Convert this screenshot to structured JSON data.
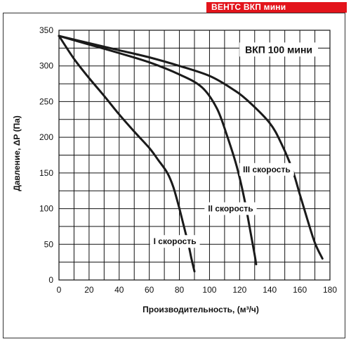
{
  "brand": {
    "text": "ВЕНТС ВКП мини",
    "color": "#e3141b"
  },
  "chart_data": {
    "type": "line",
    "title": "ВКП 100 мини",
    "xlabel": "Производительность, (м³/ч)",
    "ylabel": "Давление, ΔP (Па)",
    "xlim": [
      0,
      180
    ],
    "ylim": [
      0,
      350
    ],
    "x_ticks": [
      0,
      20,
      40,
      60,
      80,
      100,
      120,
      140,
      160,
      180
    ],
    "y_ticks": [
      0,
      50,
      100,
      150,
      200,
      250,
      300,
      350
    ],
    "grid": true,
    "series": [
      {
        "name": "I скорость",
        "points": [
          [
            0,
            342
          ],
          [
            10,
            310
          ],
          [
            20,
            283
          ],
          [
            30,
            258
          ],
          [
            40,
            232
          ],
          [
            50,
            208
          ],
          [
            60,
            185
          ],
          [
            66,
            168
          ],
          [
            72,
            150
          ],
          [
            76,
            130
          ],
          [
            80,
            100
          ],
          [
            83,
            75
          ],
          [
            86,
            50
          ],
          [
            88,
            30
          ],
          [
            90,
            12
          ]
        ]
      },
      {
        "name": "II скорость",
        "points": [
          [
            0,
            342
          ],
          [
            20,
            330
          ],
          [
            40,
            318
          ],
          [
            60,
            305
          ],
          [
            80,
            288
          ],
          [
            95,
            270
          ],
          [
            105,
            240
          ],
          [
            112,
            200
          ],
          [
            118,
            160
          ],
          [
            123,
            115
          ],
          [
            127,
            70
          ],
          [
            130,
            35
          ],
          [
            131,
            22
          ]
        ]
      },
      {
        "name": "III скорость",
        "points": [
          [
            0,
            342
          ],
          [
            20,
            332
          ],
          [
            40,
            322
          ],
          [
            60,
            312
          ],
          [
            80,
            300
          ],
          [
            100,
            286
          ],
          [
            115,
            268
          ],
          [
            125,
            252
          ],
          [
            140,
            220
          ],
          [
            148,
            190
          ],
          [
            155,
            155
          ],
          [
            160,
            120
          ],
          [
            165,
            85
          ],
          [
            170,
            52
          ],
          [
            175,
            30
          ]
        ]
      }
    ]
  }
}
